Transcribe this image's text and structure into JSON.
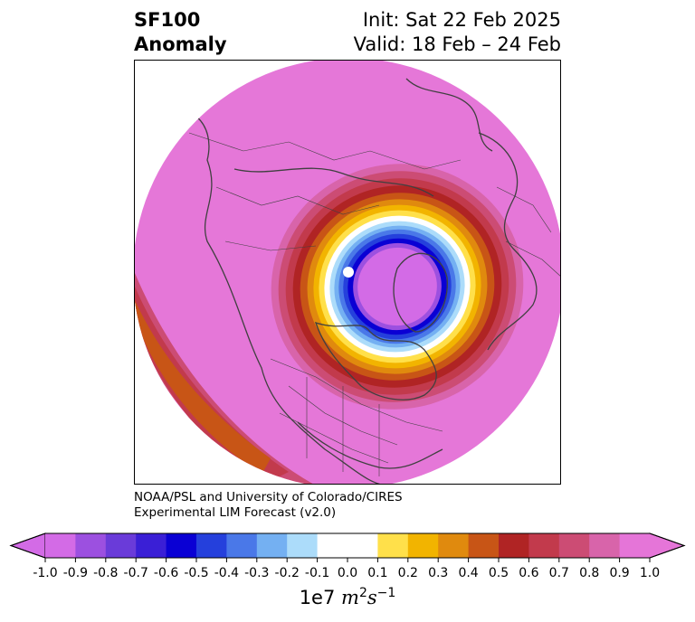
{
  "title": {
    "left_line1": "SF100",
    "left_line2": "Anomaly",
    "right_line1": "Init: Sat 22 Feb 2025",
    "right_line2": "Valid: 18 Feb – 24 Feb"
  },
  "credit": {
    "line1": "NOAA/PSL and University of Colorado/CIRES",
    "line2": "Experimental LIM Forecast (v2.0)"
  },
  "colorbar": {
    "levels": [
      "-1.0",
      "-0.9",
      "-0.8",
      "-0.7",
      "-0.6",
      "-0.5",
      "-0.4",
      "-0.3",
      "-0.2",
      "-0.1",
      "0.0",
      "0.1",
      "0.2",
      "0.3",
      "0.4",
      "0.5",
      "0.6",
      "0.7",
      "0.8",
      "0.9",
      "1.0"
    ],
    "colors": [
      "#d36be6",
      "#9c50e0",
      "#6a3bd9",
      "#3a1fd6",
      "#0a00d4",
      "#2540dc",
      "#4a78e8",
      "#74b0f2",
      "#acdcfa",
      "#ffffff",
      "#ffffff",
      "#ffe04a",
      "#f2b400",
      "#e08a0e",
      "#c85516",
      "#b02424",
      "#c23a4c",
      "#cc4c74",
      "#d864aa",
      "#e575d8"
    ],
    "unit_prefix": "1e7",
    "unit_m": "m",
    "unit_m_exp": "2",
    "unit_s": "s",
    "unit_s_exp": "−1"
  },
  "map": {
    "background_color": "#e577d8",
    "projection": "polar stereographic"
  }
}
